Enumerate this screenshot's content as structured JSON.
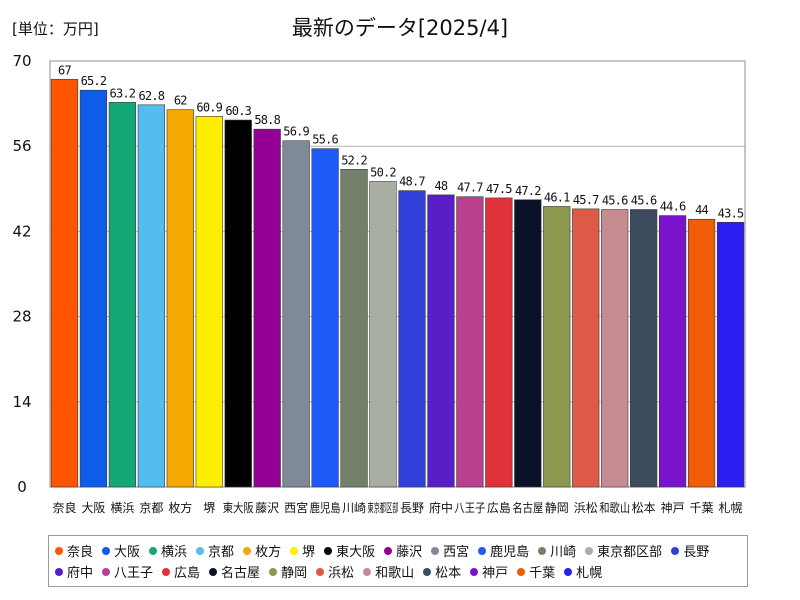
{
  "chart_data": {
    "type": "bar",
    "title": "最新のデータ[2025/4]",
    "unit_label": "[単位：万円]",
    "ylim": [
      0,
      70
    ],
    "yticks": [
      0,
      14,
      28,
      42,
      56,
      70
    ],
    "grid": true,
    "legend_position": "bottom",
    "categories": [
      "奈良",
      "大阪",
      "横浜",
      "京都",
      "枚方",
      "堺",
      "東大阪",
      "藤沢",
      "西宮",
      "鹿児島",
      "川崎",
      "東京都区部",
      "長野",
      "府中",
      "八王子",
      "広島",
      "名古屋",
      "静岡",
      "浜松",
      "和歌山",
      "松本",
      "神戸",
      "千葉",
      "札幌"
    ],
    "value_labels": [
      "67",
      "65.2",
      "63.2",
      "62.8",
      "62",
      "60.9",
      "60.3",
      "58.8",
      "56.9",
      "55.6",
      "52.2",
      "50.2",
      "48.7",
      "48",
      "47.7",
      "47.5",
      "47.2",
      "46.1",
      "45.7",
      "45.6",
      "45.6",
      "44.6",
      "44",
      "43.5"
    ],
    "values": [
      67,
      65.2,
      63.2,
      62.8,
      62,
      60.9,
      60.3,
      58.8,
      56.9,
      55.6,
      52.2,
      50.2,
      48.7,
      48,
      47.7,
      47.5,
      47.2,
      46.1,
      45.7,
      45.6,
      45.6,
      44.6,
      44,
      43.5
    ],
    "colors": [
      "#ff5500",
      "#0f5ce6",
      "#14a878",
      "#55bcf0",
      "#f5a800",
      "#ffee00",
      "#000000",
      "#940096",
      "#808a96",
      "#1e5af5",
      "#73806a",
      "#a8aea0",
      "#3040d8",
      "#5a1ec8",
      "#b8408e",
      "#e03238",
      "#0a1228",
      "#8c9850",
      "#dc5a46",
      "#c48c90",
      "#3c4c5e",
      "#7a14cc",
      "#f05c08",
      "#2a1ef0"
    ]
  }
}
